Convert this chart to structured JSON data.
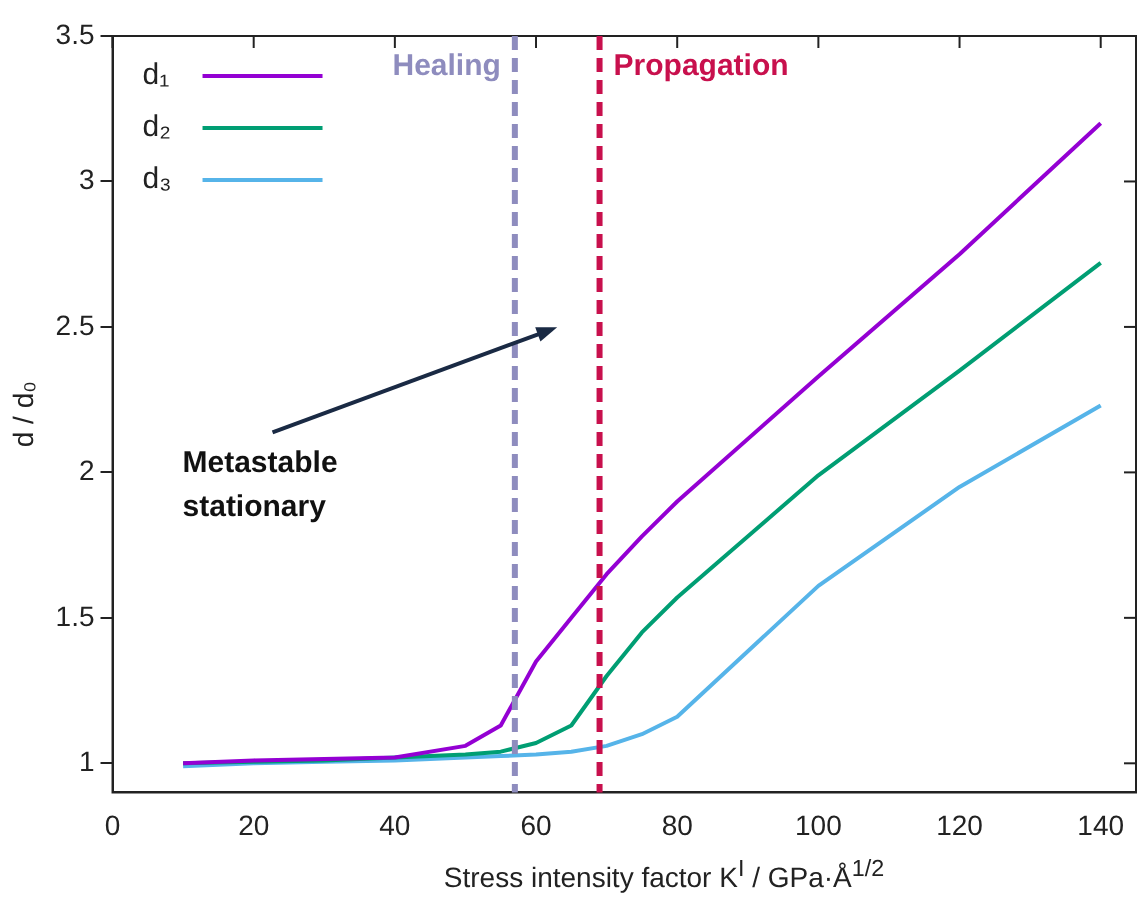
{
  "chart_data": {
    "type": "line",
    "xlabel": "Stress intensity factor K$^{I}$ / GPa·Å$^{1/2}$",
    "ylabel": "d / d₀",
    "x": [
      10,
      20,
      30,
      40,
      50,
      55,
      60,
      65,
      70,
      75,
      80,
      100,
      120,
      140
    ],
    "series": [
      {
        "name": "d₁",
        "color": "#9400d3",
        "values": [
          1.0,
          1.01,
          1.015,
          1.02,
          1.06,
          1.13,
          1.35,
          1.5,
          1.65,
          1.78,
          1.9,
          2.33,
          2.75,
          3.2
        ]
      },
      {
        "name": "d₂",
        "color": "#009e73",
        "values": [
          1.0,
          1.005,
          1.01,
          1.02,
          1.03,
          1.04,
          1.07,
          1.13,
          1.3,
          1.45,
          1.57,
          1.99,
          2.35,
          2.72
        ]
      },
      {
        "name": "d₃",
        "color": "#56b4e9",
        "values": [
          0.99,
          1.0,
          1.005,
          1.01,
          1.02,
          1.025,
          1.03,
          1.04,
          1.06,
          1.1,
          1.16,
          1.61,
          1.95,
          2.23
        ]
      }
    ],
    "xlim": [
      0,
      145
    ],
    "xticks": [
      0,
      20,
      40,
      60,
      80,
      100,
      120,
      140
    ],
    "ylim": [
      0.9,
      3.5
    ],
    "yticks": [
      1,
      1.5,
      2,
      2.5,
      3,
      3.5
    ],
    "ref_lines": [
      {
        "axis": "x",
        "value": 57,
        "label": "Healing",
        "color": "#8e8cbe",
        "line_style": "dashed"
      },
      {
        "axis": "x",
        "value": 69,
        "label": "Propagation",
        "color": "#c8104d",
        "line_style": "dashed"
      }
    ],
    "annotations": [
      "Metastable\nstationary"
    ],
    "grid": false,
    "legend": "top left",
    "marker": "none",
    "line_style": "solid"
  }
}
